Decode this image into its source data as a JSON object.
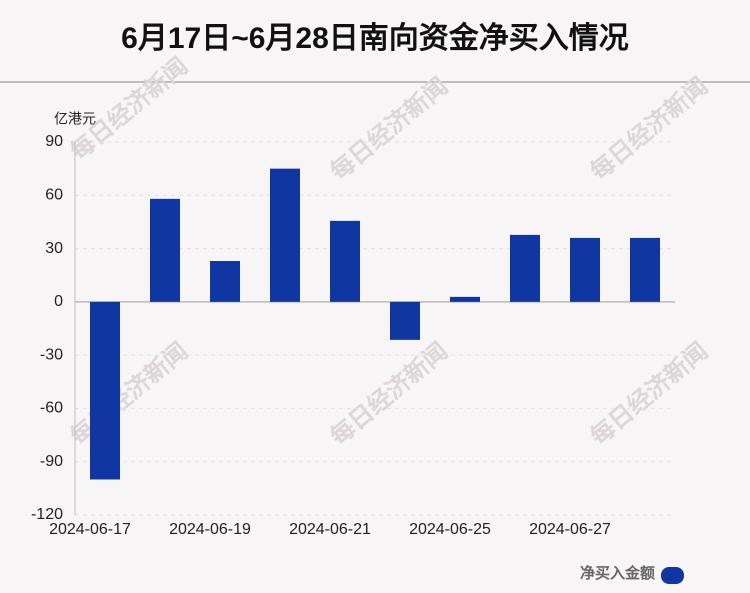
{
  "chart_data": {
    "type": "bar",
    "title": "6月17日~6月28日南向资金净买入情况",
    "y_label": "亿港元",
    "watermark": "每日经济新闻",
    "categories": [
      "2024-06-17",
      null,
      "2024-06-19",
      null,
      "2024-06-21",
      null,
      "2024-06-25",
      null,
      "2024-06-27",
      null
    ],
    "series": [
      {
        "name": "净买入金额",
        "color": "#0f36a1",
        "values": [
          -100,
          58,
          23,
          75,
          45.6,
          -21.4,
          2.8,
          37.7,
          36,
          36
        ]
      }
    ],
    "ylim": [
      -120,
      90
    ],
    "yticks": [
      -120,
      -90,
      -60,
      -30,
      0,
      30,
      60,
      90
    ],
    "grid": true,
    "legend": "bottom-right"
  }
}
